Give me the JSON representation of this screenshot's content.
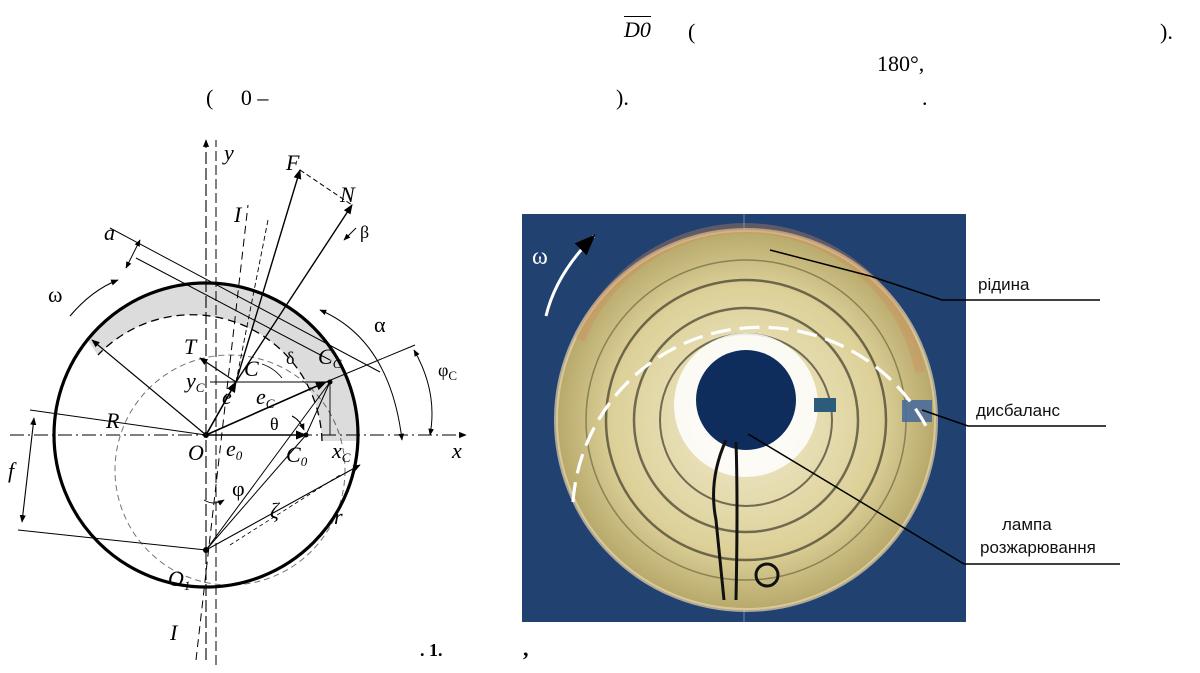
{
  "top_text": {
    "d0_symbol": "D0",
    "paren_open_1": "(",
    "paren_close_1": ").",
    "angle": "180°,",
    "paren_zero": "(     0 –",
    "paren_close_2": ").",
    "dot": "."
  },
  "diagram": {
    "labels": {
      "y": "y",
      "x": "x",
      "F": "F",
      "N": "N",
      "beta": "β",
      "I_top": "I",
      "I_bottom": "I",
      "a": "a",
      "omega": "ω",
      "alpha": "α",
      "T": "T",
      "delta": "δ",
      "C": "C",
      "Cc": "C",
      "Cc_sub": "C",
      "yc": "y",
      "yc_sub": "C",
      "e": "e",
      "ec": "e",
      "ec_sub": "C",
      "phic": "φ",
      "phic_sub": "C",
      "R": "R",
      "theta": "θ",
      "O": "O",
      "e0": "e",
      "e0_sub": "0",
      "C0": "C",
      "C0_sub": "0",
      "xc": "x",
      "xc_sub": "C",
      "f": "f",
      "phi": "φ",
      "zeta": "ζ",
      "r": "r",
      "O1": "O",
      "O1_sub": "1"
    }
  },
  "photo": {
    "omega": "ω",
    "callouts": [
      "рідина",
      "дисбаланс",
      "лампа розжарювання"
    ],
    "colors": {
      "background": "#1c3a64",
      "disk": "#d9cf95",
      "hub": "#0f2d5c",
      "marker": "#ffffff"
    }
  },
  "caption": {
    "number": ". 1.",
    "comma": ","
  }
}
